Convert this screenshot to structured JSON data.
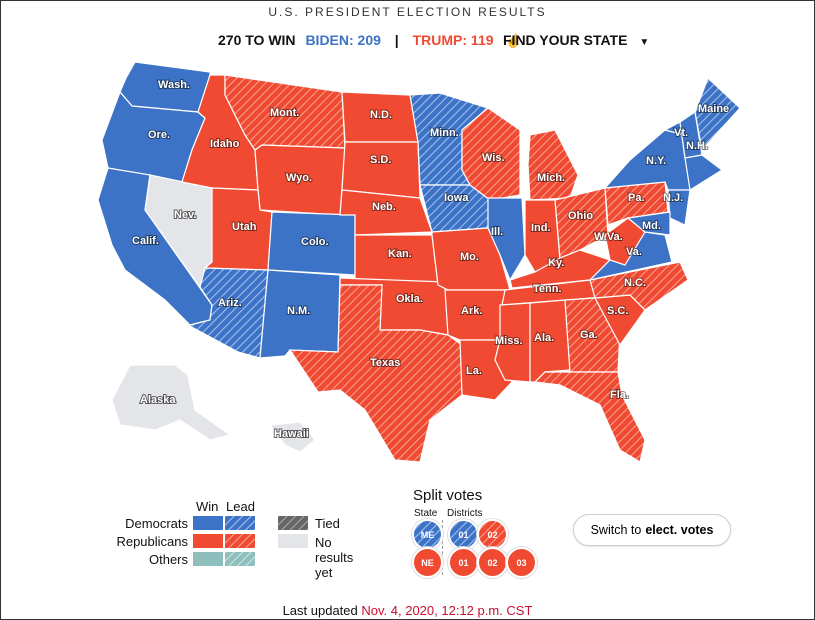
{
  "header": {
    "title": "U.S. PRESIDENT ELECTION RESULTS",
    "to_win": "270 TO WIN",
    "biden": "BIDEN: 209",
    "separator": "|",
    "trump": "TRUMP: 119",
    "hand_icon": "pointer-hand-icon",
    "find_state": "FIND YOUR STATE",
    "find_state_icon": "chevron-down-icon"
  },
  "colors": {
    "dem": "#3c73c6",
    "rep": "#f04b32",
    "others": "#8fbfbd",
    "tied": "#666666",
    "no_results": "#e3e5e8"
  },
  "states": [
    {
      "abbr": "Wash.",
      "status": "dem-win"
    },
    {
      "abbr": "Ore.",
      "status": "dem-win"
    },
    {
      "abbr": "Calif.",
      "status": "dem-win"
    },
    {
      "abbr": "Nev.",
      "status": "no-results"
    },
    {
      "abbr": "Idaho",
      "status": "rep-win"
    },
    {
      "abbr": "Mont.",
      "status": "rep-lead"
    },
    {
      "abbr": "Wyo.",
      "status": "rep-win"
    },
    {
      "abbr": "Utah",
      "status": "rep-win"
    },
    {
      "abbr": "Ariz.",
      "status": "dem-lead"
    },
    {
      "abbr": "Colo.",
      "status": "dem-win"
    },
    {
      "abbr": "N.M.",
      "status": "dem-win"
    },
    {
      "abbr": "N.D.",
      "status": "rep-win"
    },
    {
      "abbr": "S.D.",
      "status": "rep-win"
    },
    {
      "abbr": "Neb.",
      "status": "rep-win"
    },
    {
      "abbr": "Kan.",
      "status": "rep-win"
    },
    {
      "abbr": "Okla.",
      "status": "rep-win"
    },
    {
      "abbr": "Texas",
      "status": "rep-lead"
    },
    {
      "abbr": "Minn.",
      "status": "dem-lead"
    },
    {
      "abbr": "Iowa",
      "status": "dem-lead"
    },
    {
      "abbr": "Mo.",
      "status": "rep-win"
    },
    {
      "abbr": "Ark.",
      "status": "rep-win"
    },
    {
      "abbr": "La.",
      "status": "rep-win"
    },
    {
      "abbr": "Wis.",
      "status": "rep-lead"
    },
    {
      "abbr": "Ill.",
      "status": "dem-win"
    },
    {
      "abbr": "Mich.",
      "status": "rep-lead"
    },
    {
      "abbr": "Ind.",
      "status": "rep-win"
    },
    {
      "abbr": "Ohio",
      "status": "rep-lead"
    },
    {
      "abbr": "Ky.",
      "status": "rep-win"
    },
    {
      "abbr": "Tenn.",
      "status": "rep-win"
    },
    {
      "abbr": "Miss.",
      "status": "rep-win"
    },
    {
      "abbr": "Ala.",
      "status": "rep-win"
    },
    {
      "abbr": "Ga.",
      "status": "rep-lead"
    },
    {
      "abbr": "Fla.",
      "status": "rep-lead"
    },
    {
      "abbr": "S.C.",
      "status": "rep-win"
    },
    {
      "abbr": "N.C.",
      "status": "rep-lead"
    },
    {
      "abbr": "Va.",
      "status": "dem-win"
    },
    {
      "abbr": "W.Va.",
      "status": "rep-win"
    },
    {
      "abbr": "Pa.",
      "status": "rep-lead"
    },
    {
      "abbr": "N.Y.",
      "status": "dem-win"
    },
    {
      "abbr": "Vt.",
      "status": "dem-win"
    },
    {
      "abbr": "N.H.",
      "status": "dem-win"
    },
    {
      "abbr": "Maine",
      "status": "dem-lead"
    },
    {
      "abbr": "N.J.",
      "status": "dem-win"
    },
    {
      "abbr": "Md.",
      "status": "dem-win"
    },
    {
      "abbr": "Alaska",
      "status": "no-results"
    },
    {
      "abbr": "Hawaii",
      "status": "no-results"
    }
  ],
  "legend": {
    "win": "Win",
    "lead": "Lead",
    "democrats": "Democrats",
    "republicans": "Republicans",
    "others": "Others",
    "tied": "Tied",
    "no_results": "No results yet"
  },
  "split": {
    "title": "Split votes",
    "state_label": "State",
    "districts_label": "Districts",
    "me": "ME",
    "me_districts": [
      "01",
      "02"
    ],
    "ne": "NE",
    "ne_districts": [
      "01",
      "02",
      "03"
    ]
  },
  "switch": {
    "prefix": "Switch to",
    "bold": "elect. votes"
  },
  "footer": {
    "prefix": "Last updated",
    "timestamp": "Nov. 4, 2020, 12:12 p.m. CST"
  }
}
